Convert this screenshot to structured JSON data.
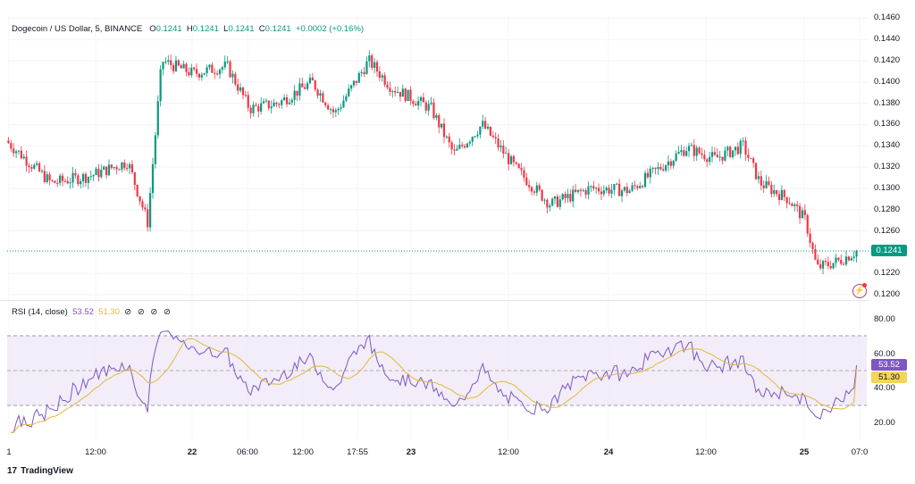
{
  "header": {
    "symbol": "Dogecoin / US Dollar, 5, BINANCE",
    "o_label": "O",
    "o_value": "0.1241",
    "h_label": "H",
    "h_value": "0.1241",
    "l_label": "L",
    "l_value": "0.1241",
    "c_label": "C",
    "c_value": "0.1241",
    "change": "+0.0002 (+0.16%)"
  },
  "rsi_legend": {
    "title": "RSI (14, close)",
    "rsi_value": "53.52",
    "ma_value": "51.30",
    "controls": "⊘ ⊘ ⊘ ⊘"
  },
  "price_tag": "0.1241",
  "rsi_tag": "53.52",
  "rsi_ma_tag": "51.30",
  "brand": {
    "logo": "17",
    "name": "TradingView"
  },
  "colors": {
    "up": "#089981",
    "down": "#f23645",
    "rsi": "#7e57c2",
    "rsi_ma": "#e2b93b",
    "band_fill": "#ede7f6",
    "tag_up": "#089981"
  },
  "icons": [
    "tradingview-logo-icon",
    "snapshot-icon"
  ],
  "chart_data": [
    {
      "type": "candlestick",
      "title": "Dogecoin / US Dollar, 5, BINANCE",
      "y_ticks": [
        "0.1460",
        "0.1440",
        "0.1420",
        "0.1400",
        "0.1380",
        "0.1360",
        "0.1340",
        "0.1320",
        "0.1300",
        "0.1280",
        "0.1260",
        "0.1240",
        "0.1220",
        "0.1200"
      ],
      "ylim": [
        0.1195,
        0.1462
      ],
      "x_ticks": [
        "1",
        "12:00",
        "22",
        "06:00",
        "12:00",
        "17:55",
        "23",
        "12:00",
        "24",
        "12:00",
        "25",
        "07:0"
      ],
      "bold_x_ticks": [
        "22",
        "23",
        "24",
        "25"
      ],
      "last_price": 0.1241,
      "grid": true,
      "path": [
        {
          "t": 0,
          "p": 0.1345
        },
        {
          "t": 0.08,
          "p": 0.1305
        },
        {
          "t": 0.15,
          "p": 0.1312
        },
        {
          "t": 0.215,
          "p": 0.1325
        },
        {
          "t": 0.25,
          "p": 0.1268
        },
        {
          "t": 0.275,
          "p": 0.142
        },
        {
          "t": 0.33,
          "p": 0.1408
        },
        {
          "t": 0.39,
          "p": 0.1415
        },
        {
          "t": 0.43,
          "p": 0.1375
        },
        {
          "t": 0.48,
          "p": 0.138
        },
        {
          "t": 0.54,
          "p": 0.14
        },
        {
          "t": 0.58,
          "p": 0.137
        },
        {
          "t": 0.64,
          "p": 0.142
        },
        {
          "t": 0.68,
          "p": 0.1395
        },
        {
          "t": 0.75,
          "p": 0.1375
        },
        {
          "t": 0.79,
          "p": 0.1332
        },
        {
          "t": 0.84,
          "p": 0.136
        },
        {
          "t": 0.9,
          "p": 0.1318
        },
        {
          "t": 0.96,
          "p": 0.1285
        },
        {
          "t": 1.03,
          "p": 0.13
        },
        {
          "t": 1.1,
          "p": 0.1298
        },
        {
          "t": 1.15,
          "p": 0.1318
        },
        {
          "t": 1.2,
          "p": 0.1338
        },
        {
          "t": 1.25,
          "p": 0.1328
        },
        {
          "t": 1.3,
          "p": 0.134
        },
        {
          "t": 1.33,
          "p": 0.1305
        },
        {
          "t": 1.38,
          "p": 0.129
        },
        {
          "t": 1.41,
          "p": 0.127
        },
        {
          "t": 1.43,
          "p": 0.1225
        },
        {
          "t": 1.47,
          "p": 0.1232
        },
        {
          "t": 1.5,
          "p": 0.1241
        }
      ]
    },
    {
      "type": "line",
      "title": "RSI (14, close)",
      "series": [
        {
          "name": "RSI",
          "last": 53.52
        },
        {
          "name": "RSI MA",
          "last": 51.3
        }
      ],
      "y_ticks": [
        "80.00",
        "60.00",
        "40.00",
        "20.00"
      ],
      "ylim": [
        12,
        88
      ],
      "band": [
        30,
        70
      ],
      "midline": 50
    }
  ]
}
